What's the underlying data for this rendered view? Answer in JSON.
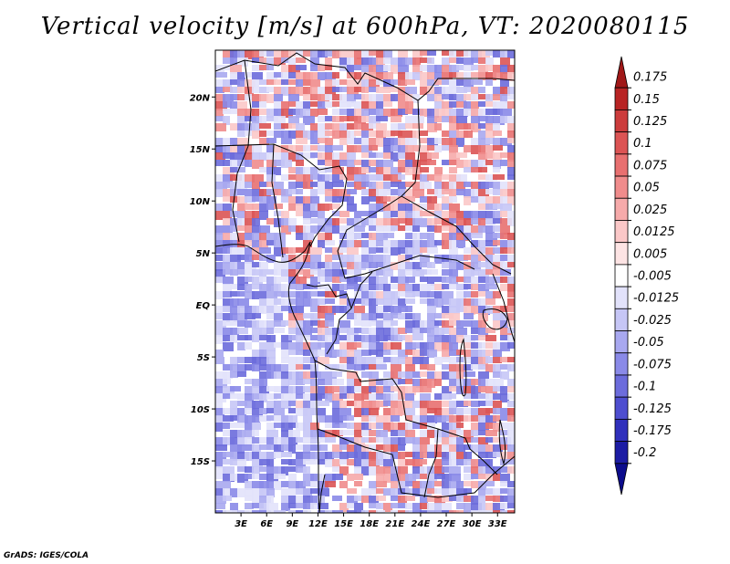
{
  "title": "Vertical velocity [m/s] at 600hPa, VT: 2020080115",
  "credit": "GrADS: IGES/COLA",
  "map": {
    "lon_range": [
      0,
      35
    ],
    "lat_range": [
      -20,
      24.5
    ],
    "lon_ticks": [
      "3E",
      "6E",
      "9E",
      "12E",
      "15E",
      "18E",
      "21E",
      "24E",
      "27E",
      "30E",
      "33E"
    ],
    "lon_values": [
      3,
      6,
      9,
      12,
      15,
      18,
      21,
      24,
      27,
      30,
      33
    ],
    "lat_ticks": [
      "20N",
      "15N",
      "10N",
      "5N",
      "EQ",
      "5S",
      "10S",
      "15S"
    ],
    "lat_values": [
      20,
      15,
      10,
      5,
      0,
      -5,
      -10,
      -15
    ]
  },
  "colorbar": {
    "labels": [
      "0.175",
      "0.15",
      "0.125",
      "0.1",
      "0.075",
      "0.05",
      "0.025",
      "0.0125",
      "0.005",
      "-0.005",
      "-0.0125",
      "-0.025",
      "-0.05",
      "-0.075",
      "-0.1",
      "-0.125",
      "-0.175",
      "-0.2"
    ],
    "colors": [
      "#a01818",
      "#b82424",
      "#cc3c3c",
      "#dc5454",
      "#e87070",
      "#f08c8c",
      "#f6aaaa",
      "#fbc8c8",
      "#fde4e4",
      "#ffffff",
      "#e2e2fb",
      "#c6c6f6",
      "#a8a8f0",
      "#8a8ae8",
      "#6c6cdc",
      "#4e4ed0",
      "#3030bc",
      "#1c1ca4",
      "#0c0c8c"
    ]
  },
  "field_colors": {
    "red": [
      "#f6aaaa",
      "#f08c8c",
      "#e87070",
      "#dc5454",
      "#fbc8c8"
    ],
    "blue": [
      "#c6c6f6",
      "#a8a8f0",
      "#8a8ae8",
      "#6c6cdc",
      "#e2e2fb"
    ]
  }
}
